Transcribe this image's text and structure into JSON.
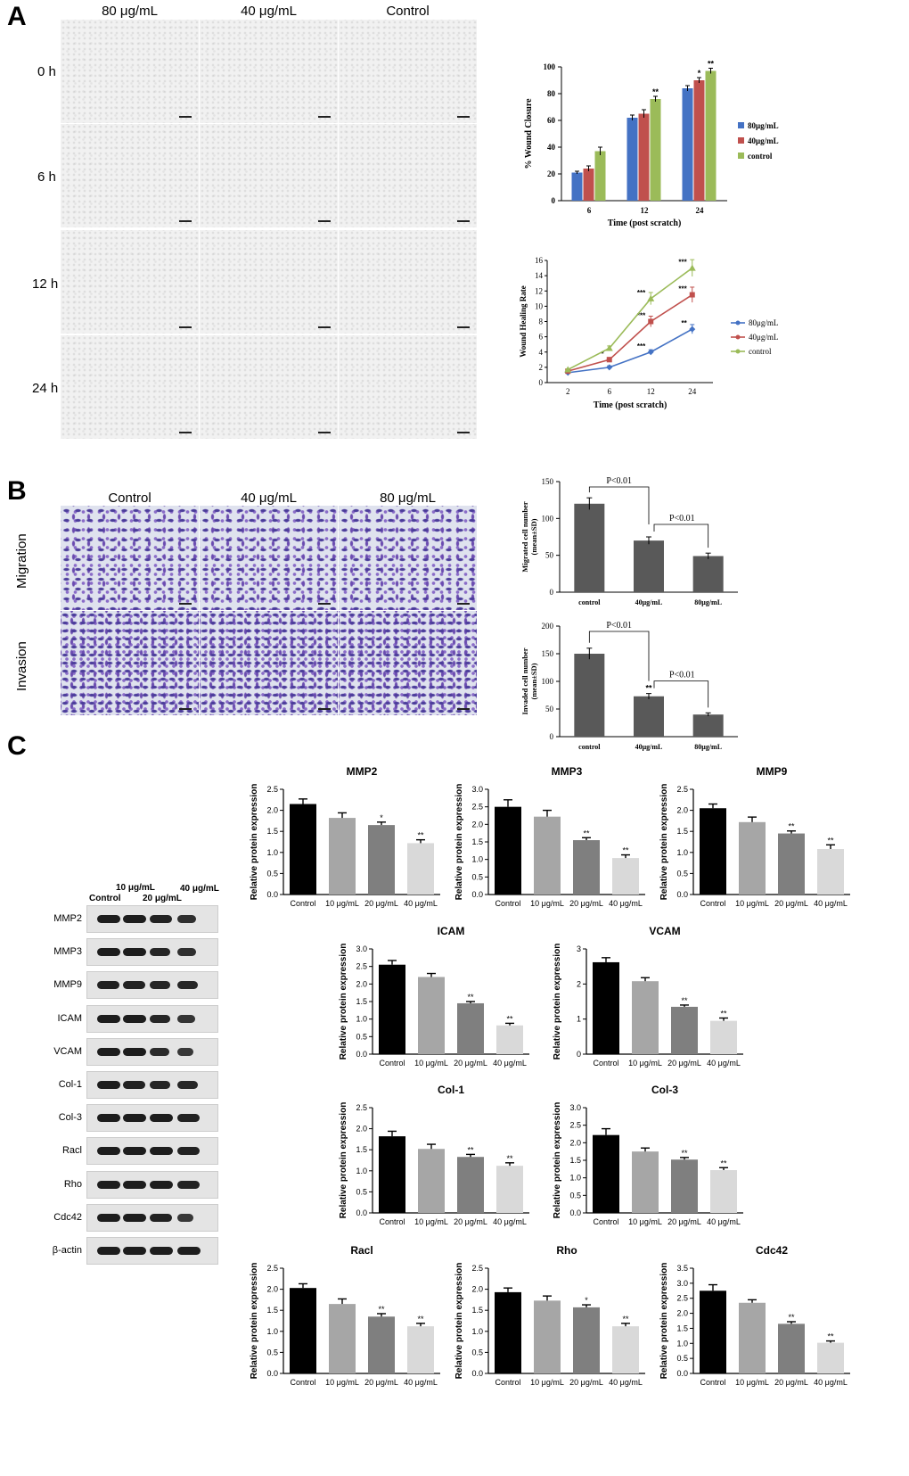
{
  "panels": {
    "A": "A",
    "B": "B",
    "C": "C"
  },
  "panelA": {
    "columns": [
      "80 μg/mL",
      "40 μg/mL",
      "Control"
    ],
    "rows": [
      "0 h",
      "6 h",
      "12 h",
      "24 h"
    ]
  },
  "panelB": {
    "columns": [
      "Control",
      "40 μg/mL",
      "80 μg/mL"
    ],
    "rows": [
      "Migration",
      "Invasion"
    ]
  },
  "blot": {
    "lane_labels": [
      "Control",
      "10 μg/mL",
      "20 μg/mL",
      "40 μg/mL"
    ],
    "proteins": [
      "MMP2",
      "MMP3",
      "MMP9",
      "ICAM",
      "VCAM",
      "Col-1",
      "Col-3",
      "Racl",
      "Rho",
      "Cdc42",
      "β-actin"
    ]
  },
  "chart_data": [
    {
      "id": "wound-closure",
      "type": "bar",
      "categories": [
        "6",
        "12",
        "24"
      ],
      "series": [
        {
          "name": "80μg/mL",
          "values": [
            21,
            62,
            84
          ],
          "errors": [
            1,
            2,
            2
          ],
          "sig": [
            "",
            "",
            ""
          ]
        },
        {
          "name": "40μg/mL",
          "values": [
            24,
            65,
            90
          ],
          "errors": [
            2,
            3,
            2
          ],
          "sig": [
            "",
            "",
            "*"
          ]
        },
        {
          "name": "control",
          "values": [
            37,
            76,
            97
          ],
          "errors": [
            3,
            2,
            2
          ],
          "sig": [
            "",
            "**",
            "**"
          ]
        }
      ],
      "colors": [
        "#4472c4",
        "#c0504d",
        "#9bbb59"
      ],
      "xlabel": "Time (post scratch)",
      "ylabel": "% Wound Closure",
      "ylim": [
        0,
        100
      ],
      "yticks": [
        0,
        20,
        40,
        60,
        80,
        100
      ]
    },
    {
      "id": "wound-healing-rate",
      "type": "line",
      "x": [
        "2",
        "6",
        "12",
        "24"
      ],
      "series": [
        {
          "name": "80μg/mL",
          "values": [
            1.3,
            2.0,
            4.0,
            7.0
          ],
          "errors": [
            0.1,
            0.2,
            0.3,
            0.6
          ],
          "sig": [
            "",
            "",
            "***",
            "**"
          ],
          "marker": "diamond"
        },
        {
          "name": "40μg/mL",
          "values": [
            1.5,
            3.0,
            8.0,
            11.5
          ],
          "errors": [
            0.1,
            0.3,
            0.7,
            1.0
          ],
          "sig": [
            "",
            "*",
            "***",
            "***"
          ],
          "marker": "square"
        },
        {
          "name": "control",
          "values": [
            1.7,
            4.5,
            11.0,
            15.0
          ],
          "errors": [
            0.1,
            0.3,
            0.8,
            1.1
          ],
          "sig": [
            "",
            "",
            "***",
            "***"
          ],
          "marker": "triangle"
        }
      ],
      "colors": [
        "#4472c4",
        "#c0504d",
        "#9bbb59"
      ],
      "xlabel": "Time (post scratch)",
      "ylabel": "Wound Healing Rate",
      "ylim": [
        0,
        16
      ],
      "yticks": [
        0,
        2,
        4,
        6,
        8,
        10,
        12,
        14,
        16
      ]
    },
    {
      "id": "migrated",
      "type": "bar",
      "categories": [
        "control",
        "40μg/mL",
        "80μg/mL"
      ],
      "values": [
        120,
        70,
        49
      ],
      "errors": [
        8,
        5,
        4
      ],
      "sig": [
        "",
        "",
        ""
      ],
      "brackets": [
        {
          "from": 0,
          "to": 1,
          "label": "P<0.01"
        },
        {
          "from": 1,
          "to": 2,
          "label": "P<0.01"
        }
      ],
      "ylabel": "Migrated cell number\n(mean±SD)",
      "ylim": [
        0,
        150
      ],
      "yticks": [
        0,
        50,
        100,
        150
      ]
    },
    {
      "id": "invaded",
      "type": "bar",
      "categories": [
        "control",
        "40μg/mL",
        "80μg/mL"
      ],
      "values": [
        150,
        73,
        40
      ],
      "errors": [
        10,
        5,
        3
      ],
      "sig": [
        "",
        "**",
        ""
      ],
      "brackets": [
        {
          "from": 0,
          "to": 1,
          "label": "P<0.01"
        },
        {
          "from": 1,
          "to": 2,
          "label": "P<0.01"
        }
      ],
      "ylabel": "Invaded cell number\n(mean±SD)",
      "ylim": [
        0,
        200
      ],
      "yticks": [
        0,
        50,
        100,
        150,
        200
      ]
    },
    {
      "id": "MMP2",
      "type": "bar",
      "title": "MMP2",
      "categories": [
        "Control",
        "10 μg/mL",
        "20 μg/mL",
        "40 μg/mL"
      ],
      "values": [
        2.15,
        1.82,
        1.65,
        1.22
      ],
      "errors": [
        0.12,
        0.12,
        0.07,
        0.08
      ],
      "sig": [
        "",
        "",
        "*",
        "**"
      ],
      "ylabel": "Relative protein expression",
      "ylim": [
        0,
        2.5
      ],
      "yticks": [
        0.0,
        0.5,
        1.0,
        1.5,
        2.0,
        2.5
      ]
    },
    {
      "id": "MMP3",
      "type": "bar",
      "title": "MMP3",
      "categories": [
        "Control",
        "10 μg/mL",
        "20 μg/mL",
        "40 μg/mL"
      ],
      "values": [
        2.5,
        2.22,
        1.55,
        1.04
      ],
      "errors": [
        0.2,
        0.18,
        0.07,
        0.09
      ],
      "sig": [
        "",
        "",
        "**",
        "**"
      ],
      "ylabel": "Relative protein expression",
      "ylim": [
        0,
        3.0
      ],
      "yticks": [
        0.0,
        0.5,
        1.0,
        1.5,
        2.0,
        2.5,
        3.0
      ]
    },
    {
      "id": "MMP9",
      "type": "bar",
      "title": "MMP9",
      "categories": [
        "Control",
        "10 μg/mL",
        "20 μg/mL",
        "40 μg/mL"
      ],
      "values": [
        2.05,
        1.72,
        1.45,
        1.08
      ],
      "errors": [
        0.1,
        0.12,
        0.06,
        0.1
      ],
      "sig": [
        "",
        "",
        "**",
        "**"
      ],
      "ylabel": "Relative protein expression",
      "ylim": [
        0,
        2.5
      ],
      "yticks": [
        0.0,
        0.5,
        1.0,
        1.5,
        2.0,
        2.5
      ]
    },
    {
      "id": "ICAM",
      "type": "bar",
      "title": "ICAM",
      "categories": [
        "Control",
        "10 μg/mL",
        "20 μg/mL",
        "40 μg/mL"
      ],
      "values": [
        2.55,
        2.2,
        1.45,
        0.82
      ],
      "errors": [
        0.12,
        0.1,
        0.05,
        0.06
      ],
      "sig": [
        "",
        "",
        "**",
        "**"
      ],
      "ylabel": "Relative protein expression",
      "ylim": [
        0,
        3.0
      ],
      "yticks": [
        0.0,
        0.5,
        1.0,
        1.5,
        2.0,
        2.5,
        3.0
      ]
    },
    {
      "id": "VCAM",
      "type": "bar",
      "title": "VCAM",
      "categories": [
        "Control",
        "10 μg/mL",
        "20 μg/mL",
        "40 μg/mL"
      ],
      "values": [
        2.62,
        2.08,
        1.35,
        0.95
      ],
      "errors": [
        0.13,
        0.1,
        0.05,
        0.08
      ],
      "sig": [
        "",
        "",
        "**",
        "**"
      ],
      "ylabel": "Relative protein expression",
      "ylim": [
        0,
        3.0
      ],
      "yticks": [
        0,
        1,
        2,
        3
      ]
    },
    {
      "id": "Col-1",
      "type": "bar",
      "title": "Col-1",
      "categories": [
        "Control",
        "10 μg/mL",
        "20 μg/mL",
        "40 μg/mL"
      ],
      "values": [
        1.82,
        1.52,
        1.33,
        1.12
      ],
      "errors": [
        0.12,
        0.11,
        0.06,
        0.07
      ],
      "sig": [
        "",
        "",
        "**",
        "**"
      ],
      "ylabel": "Relative protein expression",
      "ylim": [
        0,
        2.5
      ],
      "yticks": [
        0.0,
        0.5,
        1.0,
        1.5,
        2.0,
        2.5
      ]
    },
    {
      "id": "Col-3",
      "type": "bar",
      "title": "Col-3",
      "categories": [
        "Control",
        "10 μg/mL",
        "20 μg/mL",
        "40 μg/mL"
      ],
      "values": [
        2.22,
        1.75,
        1.52,
        1.22
      ],
      "errors": [
        0.18,
        0.1,
        0.06,
        0.07
      ],
      "sig": [
        "",
        "",
        "**",
        "**"
      ],
      "ylabel": "Relative protein expression",
      "ylim": [
        0,
        3.0
      ],
      "yticks": [
        0.0,
        0.5,
        1.0,
        1.5,
        2.0,
        2.5,
        3.0
      ]
    },
    {
      "id": "Racl",
      "type": "bar",
      "title": "Racl",
      "categories": [
        "Control",
        "10 μg/mL",
        "20 μg/mL",
        "40 μg/mL"
      ],
      "values": [
        2.03,
        1.65,
        1.35,
        1.12
      ],
      "errors": [
        0.1,
        0.12,
        0.07,
        0.07
      ],
      "sig": [
        "",
        "",
        "**",
        "**"
      ],
      "ylabel": "Relative protein expression",
      "ylim": [
        0,
        2.5
      ],
      "yticks": [
        0.0,
        0.5,
        1.0,
        1.5,
        2.0,
        2.5
      ]
    },
    {
      "id": "Rho",
      "type": "bar",
      "title": "Rho",
      "categories": [
        "Control",
        "10 μg/mL",
        "20 μg/mL",
        "40 μg/mL"
      ],
      "values": [
        1.93,
        1.73,
        1.57,
        1.12
      ],
      "errors": [
        0.1,
        0.11,
        0.06,
        0.07
      ],
      "sig": [
        "",
        "",
        "*",
        "**"
      ],
      "ylabel": "Relative protein expression",
      "ylim": [
        0,
        2.5
      ],
      "yticks": [
        0.0,
        0.5,
        1.0,
        1.5,
        2.0,
        2.5
      ]
    },
    {
      "id": "Cdc42",
      "type": "bar",
      "title": "Cdc42",
      "categories": [
        "Control",
        "10 μg/mL",
        "20 μg/mL",
        "40 μg/mL"
      ],
      "values": [
        2.75,
        2.35,
        1.65,
        1.02
      ],
      "errors": [
        0.2,
        0.1,
        0.07,
        0.06
      ],
      "sig": [
        "",
        "",
        "**",
        "**"
      ],
      "ylabel": "Relative protein expression",
      "ylim": [
        0,
        3.5
      ],
      "yticks": [
        0.0,
        0.5,
        1.0,
        1.5,
        2.0,
        2.5,
        3.0,
        3.5
      ]
    }
  ]
}
